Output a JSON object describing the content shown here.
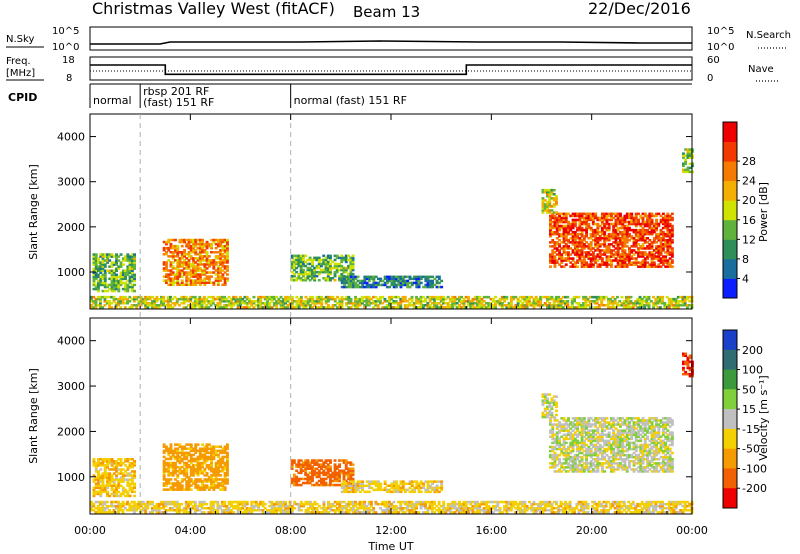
{
  "header": {
    "title": "Christmas Valley West (fitACF)",
    "beam": "Beam 13",
    "date": "22/Dec/2016"
  },
  "labels": {
    "nsky": "N.Sky",
    "nsearch": "N.Search",
    "freq_line1": "Freq.",
    "freq_line2": "[MHz]",
    "nave": "Nave",
    "cpid": "CPID",
    "slant_range": "Slant Range [km]",
    "time_axis": "Time UT",
    "power_label": "Power [dB]",
    "velocity_label": "Velocity [m s⁻¹]",
    "noise_tick_hi": "10^5",
    "noise_tick_lo": "10^0",
    "noise_tick_hi_r": "10^5",
    "noise_tick_lo_r": "10^0",
    "freq_tick_hi": "18",
    "freq_tick_lo": "8",
    "nave_tick_hi": "60",
    "nave_tick_lo": "0"
  },
  "cpid_segments": [
    {
      "label_line1": "normal",
      "label_line2": "",
      "start_hour": 0,
      "end_hour": 2.0
    },
    {
      "label_line1": "rbsp 201 RF",
      "label_line2": "(fast) 151 RF",
      "start_hour": 2.0,
      "end_hour": 8.0
    },
    {
      "label_line1": "normal (fast) 151 RF",
      "label_line2": "",
      "start_hour": 8.0,
      "end_hour": 24.0
    }
  ],
  "chart_data": {
    "type": "heatmap",
    "x_range_hours": [
      0,
      24
    ],
    "x_ticks": [
      "00:00",
      "04:00",
      "08:00",
      "12:00",
      "16:00",
      "20:00",
      "00:00"
    ],
    "x_tick_hours": [
      0,
      4,
      8,
      12,
      16,
      20,
      24
    ],
    "y_range_km": [
      180,
      4500
    ],
    "y_ticks": [
      1000,
      2000,
      3000,
      4000
    ],
    "y_tick_labels": [
      "1000",
      "2000",
      "3000",
      "4000"
    ],
    "frequency_mhz": [
      {
        "start_hour": 0,
        "end_hour": 3.0,
        "value": 14.5
      },
      {
        "start_hour": 3.0,
        "end_hour": 15.0,
        "value": 10.5
      },
      {
        "start_hour": 15.0,
        "end_hour": 24.0,
        "value": 14.5
      }
    ],
    "power_colorbar": {
      "tick_labels": [
        "4",
        "8",
        "12",
        "16",
        "20",
        "24",
        "28"
      ],
      "colors": [
        "#0a1eff",
        "#1a6e9e",
        "#2f8f5a",
        "#5fb33c",
        "#cfe200",
        "#f4b000",
        "#f57a00",
        "#f23a00",
        "#ee0000"
      ]
    },
    "velocity_colorbar": {
      "tick_labels": [
        "200",
        "100",
        "50",
        "15",
        "-15",
        "-50",
        "-100",
        "-200"
      ],
      "colors": [
        "#1a3fc8",
        "#2f6d73",
        "#3b9a3c",
        "#7fd03a",
        "#c0c0c0",
        "#f5d000",
        "#f59a00",
        "#f26000",
        "#ee0000"
      ]
    },
    "echo_regions": [
      {
        "t0": 0.1,
        "t1": 1.8,
        "r0": 560,
        "r1": 1400,
        "power": 12,
        "velocity": -40
      },
      {
        "t0": 2.9,
        "t1": 5.5,
        "r0": 700,
        "r1": 1700,
        "power": 22,
        "velocity": -70
      },
      {
        "t0": 8.0,
        "t1": 10.5,
        "r0": 800,
        "r1": 1350,
        "power": 12,
        "velocity": -120
      },
      {
        "t0": 10.0,
        "t1": 14.0,
        "r0": 650,
        "r1": 900,
        "power": 8,
        "velocity": -30
      },
      {
        "t0": 18.3,
        "t1": 23.2,
        "r0": 1100,
        "r1": 2300,
        "power": 26,
        "velocity": 0
      },
      {
        "t0": 18.0,
        "t1": 18.6,
        "r0": 2300,
        "r1": 2800,
        "power": 16,
        "velocity": 0
      },
      {
        "t0": 0.0,
        "t1": 24.0,
        "r0": 200,
        "r1": 450,
        "power": 16,
        "velocity": -30
      },
      {
        "t0": 23.6,
        "t1": 24.0,
        "r0": 3200,
        "r1": 3700,
        "power": 14,
        "velocity": -200
      }
    ]
  }
}
